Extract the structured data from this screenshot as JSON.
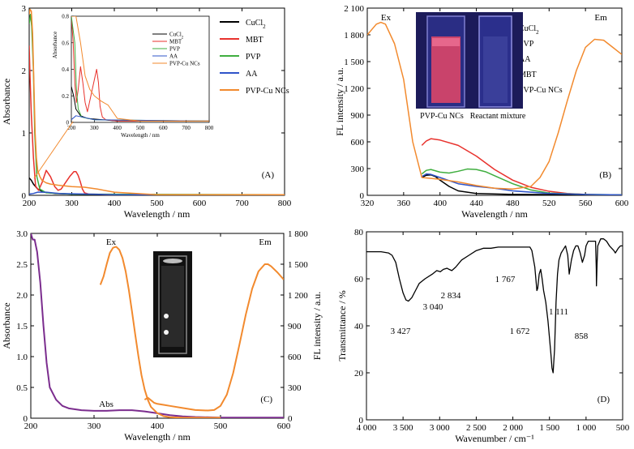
{
  "chart_data": [
    {
      "panel": "(A)",
      "type": "line",
      "xlabel": "Wavelength / nm",
      "ylabel": "Absorbance",
      "xlim": [
        200,
        800
      ],
      "ylim": [
        0,
        3
      ],
      "xticks": [
        "200",
        "300",
        "400",
        "500",
        "600",
        "700",
        "800"
      ],
      "yticks": [
        "0",
        "1",
        "2",
        "3"
      ],
      "legend_position": "top-right",
      "series": [
        {
          "name": "CuCl2",
          "color": "#000000",
          "x": [
            200,
            205,
            210,
            220,
            235,
            260,
            300,
            400,
            800
          ],
          "y": [
            0.28,
            0.24,
            0.18,
            0.1,
            0.05,
            0.03,
            0.02,
            0.01,
            0.01
          ]
        },
        {
          "name": "MBT",
          "color": "#e8322d",
          "x": [
            200,
            202,
            205,
            210,
            215,
            222,
            230,
            240,
            250,
            260,
            268,
            275,
            285,
            295,
            305,
            310,
            315,
            320,
            325,
            330,
            340,
            400,
            800
          ],
          "y": [
            2.4,
            1.9,
            1.3,
            0.6,
            0.15,
            0.08,
            0.2,
            0.4,
            0.3,
            0.14,
            0.08,
            0.1,
            0.2,
            0.3,
            0.38,
            0.38,
            0.32,
            0.22,
            0.1,
            0.04,
            0.02,
            0.01,
            0.01
          ]
        },
        {
          "name": "PVP",
          "color": "#3fae3f",
          "x": [
            200,
            203,
            206,
            210,
            213,
            218,
            225,
            240,
            300,
            800
          ],
          "y": [
            2.75,
            2.9,
            2.7,
            2.0,
            1.0,
            0.3,
            0.1,
            0.04,
            0.02,
            0.01
          ]
        },
        {
          "name": "AA",
          "color": "#2f54c9",
          "x": [
            200,
            210,
            220,
            240,
            270,
            400,
            800
          ],
          "y": [
            0.02,
            0.03,
            0.05,
            0.05,
            0.03,
            0.01,
            0.01
          ]
        },
        {
          "name": "PVP-Cu NCs",
          "color": "#f28a2e",
          "x": [
            200,
            202,
            205,
            208,
            211,
            214,
            217,
            220,
            225,
            230,
            240,
            250,
            270,
            300,
            330,
            360,
            400,
            500,
            800
          ],
          "y": [
            2.9,
            2.98,
            2.95,
            2.6,
            1.8,
            1.0,
            0.6,
            0.4,
            0.3,
            0.24,
            0.2,
            0.18,
            0.16,
            0.14,
            0.13,
            0.1,
            0.05,
            0.01,
            0.01
          ]
        }
      ],
      "inset": {
        "xlabel": "Wavelength / nm",
        "ylabel": "Absorbance",
        "xlim": [
          200,
          800
        ],
        "ylim": [
          0,
          0.8
        ],
        "xticks": [
          "200",
          "300",
          "400",
          "500",
          "600",
          "700",
          "800"
        ],
        "yticks": [
          "0",
          "0.2",
          "0.4",
          "0.6",
          "0.8"
        ],
        "legend": [
          "CuCl2",
          "MBT",
          "PVP",
          "AA",
          "PVP-Cu NCs"
        ],
        "series": [
          {
            "name": "CuCl2",
            "color": "#000000",
            "x": [
              200,
              210,
              220,
              240,
              270,
              400,
              800
            ],
            "y": [
              0.27,
              0.2,
              0.1,
              0.05,
              0.03,
              0.01,
              0.01
            ]
          },
          {
            "name": "MBT",
            "color": "#e8322d",
            "x": [
              200,
              208,
              215,
              222,
              230,
              240,
              250,
              260,
              270,
              285,
              300,
              310,
              318,
              325,
              335,
              350,
              400,
              800
            ],
            "y": [
              0.8,
              0.6,
              0.3,
              0.15,
              0.25,
              0.42,
              0.3,
              0.15,
              0.08,
              0.2,
              0.32,
              0.4,
              0.3,
              0.12,
              0.04,
              0.02,
              0.01,
              0.01
            ]
          },
          {
            "name": "PVP",
            "color": "#3fae3f",
            "x": [
              200,
              215,
              222,
              230,
              245,
              300,
              800
            ],
            "y": [
              0.8,
              0.6,
              0.25,
              0.1,
              0.04,
              0.02,
              0.01
            ]
          },
          {
            "name": "AA",
            "color": "#2f54c9",
            "x": [
              200,
              220,
              250,
              300,
              800
            ],
            "y": [
              0.02,
              0.05,
              0.04,
              0.02,
              0.01
            ]
          },
          {
            "name": "PVP-Cu NCs",
            "color": "#f28a2e",
            "x": [
              200,
              220,
              240,
              260,
              280,
              300,
              330,
              360,
              380,
              400,
              500,
              800
            ],
            "y": [
              0.8,
              0.8,
              0.6,
              0.35,
              0.25,
              0.2,
              0.16,
              0.13,
              0.08,
              0.03,
              0.01,
              0.01
            ]
          }
        ]
      }
    },
    {
      "panel": "(B)",
      "type": "line",
      "xlabel": "Wavelength / nm",
      "ylabel": "FL intensity / a.u.",
      "xlim": [
        320,
        600
      ],
      "ylim": [
        0,
        2100
      ],
      "xticks": [
        "320",
        "360",
        "400",
        "440",
        "480",
        "520",
        "560",
        "600"
      ],
      "yticks": [
        "0",
        "300",
        "600",
        "900",
        "1 200",
        "1 500",
        "1 800",
        "2 100"
      ],
      "legend_position": "top-right",
      "annotations": [
        "Ex",
        "Em"
      ],
      "inset_captions": [
        "PVP-Cu NCs",
        "Reactant mixture"
      ],
      "series": [
        {
          "name": "CuCl2",
          "color": "#000000",
          "x": [
            380,
            385,
            390,
            395,
            400,
            410,
            420,
            440,
            480,
            600
          ],
          "y": [
            200,
            225,
            230,
            210,
            170,
            100,
            50,
            20,
            10,
            5
          ]
        },
        {
          "name": "PVP",
          "color": "#e8322d",
          "x": [
            380,
            385,
            390,
            400,
            420,
            440,
            460,
            480,
            500,
            520,
            540,
            560,
            580,
            600
          ],
          "y": [
            560,
            610,
            635,
            620,
            560,
            440,
            290,
            170,
            90,
            45,
            20,
            10,
            5,
            5
          ]
        },
        {
          "name": "AA",
          "color": "#3fae3f",
          "x": [
            380,
            385,
            390,
            400,
            410,
            420,
            430,
            440,
            450,
            460,
            480,
            500,
            520,
            560,
            600
          ],
          "y": [
            240,
            280,
            290,
            260,
            250,
            270,
            295,
            290,
            265,
            220,
            130,
            60,
            25,
            10,
            5
          ]
        },
        {
          "name": "MBT",
          "color": "#2f54c9",
          "x": [
            380,
            385,
            390,
            400,
            420,
            440,
            460,
            480,
            520,
            560,
            600
          ],
          "y": [
            210,
            240,
            235,
            200,
            130,
            100,
            80,
            50,
            20,
            10,
            5
          ]
        },
        {
          "name": "PVP-Cu NCs",
          "color": "#f28a2e",
          "x": [
            320,
            330,
            335,
            340,
            350,
            360,
            370,
            380,
            390,
            400,
            420,
            440,
            460,
            480,
            500,
            510,
            520,
            530,
            540,
            550,
            560,
            570,
            580,
            590,
            600
          ],
          "y": [
            1800,
            1920,
            1940,
            1920,
            1700,
            1300,
            600,
            200,
            190,
            180,
            150,
            110,
            80,
            70,
            100,
            200,
            380,
            700,
            1060,
            1400,
            1660,
            1750,
            1740,
            1660,
            1580
          ]
        }
      ]
    },
    {
      "panel": "(C)",
      "type": "line",
      "xlabel": "Wavelength / nm",
      "ylabel": "Absorbance",
      "ylabel_right": "FL intensity / a.u.",
      "xlim": [
        200,
        600
      ],
      "ylim": [
        0,
        3
      ],
      "ylim_right": [
        0,
        1800
      ],
      "xticks": [
        "200",
        "300",
        "400",
        "500",
        "600"
      ],
      "yticks": [
        "0",
        "0.5",
        "1.0",
        "1.5",
        "2.0",
        "2.5",
        "3.0"
      ],
      "yticks_right": [
        "0",
        "300",
        "600",
        "900",
        "1 200",
        "1 500",
        "1 800"
      ],
      "annotations": [
        "Ex",
        "Em",
        "Abs"
      ],
      "series": [
        {
          "label": "Abs",
          "color": "#7b2d8e",
          "axis": "left",
          "x": [
            200,
            203,
            206,
            210,
            215,
            220,
            225,
            230,
            240,
            250,
            260,
            280,
            300,
            320,
            340,
            360,
            380,
            400,
            420,
            440,
            460,
            500,
            600
          ],
          "y": [
            3.0,
            2.9,
            2.9,
            2.7,
            2.2,
            1.5,
            0.9,
            0.5,
            0.3,
            0.2,
            0.16,
            0.13,
            0.12,
            0.12,
            0.13,
            0.13,
            0.11,
            0.08,
            0.05,
            0.03,
            0.02,
            0.01,
            0.01
          ]
        },
        {
          "label": "Ex",
          "color": "#f28a2e",
          "axis": "right",
          "x": [
            310,
            315,
            320,
            325,
            330,
            335,
            340,
            345,
            350,
            355,
            360,
            365,
            370,
            375,
            380,
            385,
            390,
            400,
            410,
            420,
            440,
            460,
            480,
            500
          ],
          "y": [
            1300,
            1380,
            1500,
            1610,
            1660,
            1670,
            1640,
            1560,
            1430,
            1250,
            1040,
            820,
            610,
            420,
            280,
            180,
            110,
            50,
            20,
            10,
            5,
            5,
            5,
            5
          ]
        },
        {
          "label": "Em",
          "color": "#f28a2e",
          "axis": "right",
          "x": [
            380,
            385,
            390,
            395,
            400,
            410,
            420,
            440,
            460,
            480,
            490,
            500,
            510,
            520,
            530,
            540,
            550,
            560,
            570,
            575,
            580,
            590,
            600
          ],
          "y": [
            180,
            200,
            175,
            150,
            140,
            130,
            120,
            100,
            80,
            75,
            80,
            120,
            230,
            440,
            720,
            1010,
            1260,
            1430,
            1500,
            1500,
            1480,
            1420,
            1350
          ]
        }
      ]
    },
    {
      "panel": "(D)",
      "type": "line",
      "xlabel": "Wavenumber / cm⁻¹",
      "ylabel": "Transmittance / %",
      "xlim": [
        4000,
        500
      ],
      "ylim": [
        0,
        80
      ],
      "xticks": [
        "4 000",
        "3 500",
        "3 000",
        "2 500",
        "2 000",
        "1 500",
        "1 000",
        "500"
      ],
      "yticks": [
        "0",
        "20",
        "40",
        "60",
        "80"
      ],
      "peak_labels": [
        "3 427",
        "3 040",
        "2 834",
        "1 767",
        "1 672",
        "1 111",
        "858"
      ],
      "series": [
        {
          "color": "#000000",
          "x": [
            4000,
            3800,
            3700,
            3650,
            3600,
            3550,
            3500,
            3460,
            3427,
            3380,
            3330,
            3280,
            3200,
            3100,
            3040,
            2990,
            2950,
            2900,
            2870,
            2834,
            2780,
            2700,
            2600,
            2500,
            2400,
            2300,
            2200,
            2100,
            2000,
            1900,
            1800,
            1767,
            1740,
            1700,
            1680,
            1672,
            1660,
            1640,
            1620,
            1600,
            1580,
            1550,
            1520,
            1500,
            1480,
            1465,
            1450,
            1430,
            1410,
            1390,
            1370,
            1340,
            1300,
            1280,
            1250,
            1230,
            1200,
            1170,
            1140,
            1111,
            1080,
            1050,
            1020,
            1000,
            970,
            940,
            910,
            880,
            870,
            860,
            858,
            850,
            840,
            800,
            760,
            720,
            680,
            650,
            620,
            600,
            560,
            530,
            500
          ],
          "y": [
            71.5,
            71.5,
            71,
            70,
            67,
            60,
            54,
            51,
            50.5,
            52,
            55,
            58,
            60,
            62,
            63.5,
            63,
            64,
            64.5,
            64,
            63.5,
            65,
            68,
            70,
            72,
            73,
            73,
            73.5,
            73.5,
            73.5,
            73.5,
            73.5,
            73.5,
            72,
            65,
            58,
            55,
            56,
            62,
            64,
            60,
            55,
            50,
            42,
            35,
            28,
            22,
            20,
            30,
            50,
            62,
            68,
            71,
            73,
            74,
            70,
            62,
            68,
            72,
            74,
            74,
            71,
            67,
            70,
            74,
            76,
            76,
            76,
            76,
            76,
            64,
            57,
            66,
            74,
            77,
            77,
            76,
            74,
            73,
            72,
            71,
            73,
            74,
            74
          ]
        }
      ]
    }
  ]
}
